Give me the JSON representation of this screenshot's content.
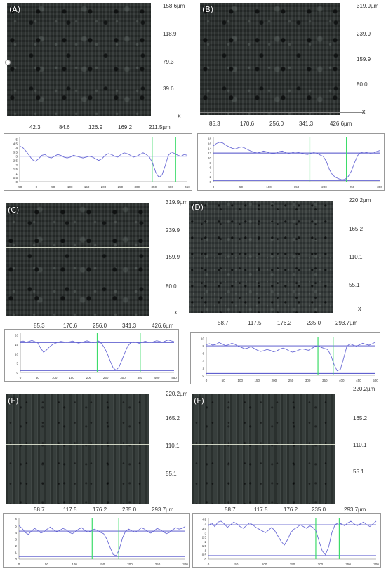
{
  "colors": {
    "profile_line": "#6b6bd6",
    "reference_line": "#4a4ac8",
    "cursor_line": "#3ddc6a",
    "axis_text": "#333333"
  },
  "panels": [
    {
      "id": "A",
      "label": "(A)",
      "texture": "coarse",
      "y_ticks": [
        "158.6µm",
        "118.9",
        "79.3",
        "39.6"
      ],
      "x_ticks": [
        "42.3",
        "84.6",
        "126.9",
        "169.2",
        "211.5µm"
      ],
      "axis_letter": "x",
      "profile": {
        "x_ticks": [
          "-50",
          "0",
          "50",
          "100",
          "150",
          "200",
          "250",
          "300",
          "350",
          "400",
          "450"
        ],
        "y_ticks": [
          "5",
          "4.5",
          "4",
          "3.5",
          "3",
          "2.5",
          "2",
          "1.5",
          "1",
          "0.5",
          "0"
        ],
        "ref_high": 3.0,
        "ref_low": 0.2,
        "ymax": 5.2,
        "cursors": [
          0.79,
          0.93
        ],
        "values": [
          4.2,
          4.0,
          3.6,
          3.1,
          2.6,
          2.4,
          2.7,
          3.1,
          3.2,
          2.9,
          2.8,
          3.0,
          3.2,
          3.1,
          2.9,
          2.8,
          2.9,
          3.1,
          3.0,
          2.9,
          2.8,
          2.9,
          3.0,
          2.9,
          2.7,
          2.5,
          2.7,
          3.1,
          3.3,
          3.2,
          3.0,
          2.9,
          3.2,
          3.4,
          3.3,
          3.1,
          2.9,
          3.0,
          3.2,
          3.4,
          3.2,
          2.9,
          2.2,
          1.1,
          0.5,
          0.8,
          1.9,
          3.1,
          3.5,
          3.3,
          3.1,
          3.0,
          3.2,
          3.1
        ]
      }
    },
    {
      "id": "B",
      "label": "(B)",
      "texture": "coarse",
      "y_ticks": [
        "319.9µm",
        "239.9",
        "159.9",
        "80.0"
      ],
      "x_ticks": [
        "85.3",
        "170.6",
        "256.0",
        "341.3",
        "426.6µm"
      ],
      "axis_letter": "x",
      "profile": {
        "x_ticks": [
          "0",
          "50",
          "100",
          "150",
          "200",
          "250",
          "300"
        ],
        "y_ticks": [
          "18",
          "16",
          "14",
          "12",
          "10",
          "8",
          "6",
          "4",
          "2",
          "0"
        ],
        "ref_high": 12.0,
        "ref_low": 0.5,
        "ymax": 18.5,
        "cursors": [
          0.58,
          0.8
        ],
        "values": [
          15.0,
          16.0,
          16.5,
          16.2,
          15.3,
          14.6,
          14.0,
          13.7,
          14.2,
          14.6,
          14.1,
          13.4,
          12.8,
          12.3,
          12.0,
          12.4,
          12.8,
          12.5,
          12.0,
          11.7,
          12.0,
          12.6,
          12.8,
          12.2,
          11.8,
          12.1,
          12.5,
          12.3,
          11.9,
          11.6,
          11.4,
          11.8,
          12.2,
          11.9,
          11.2,
          10.6,
          8.5,
          5.0,
          2.8,
          1.8,
          1.2,
          0.8,
          1.0,
          2.2,
          4.5,
          8.0,
          11.0,
          12.2,
          12.5,
          12.2,
          11.9,
          12.0,
          12.6,
          13.0
        ]
      }
    },
    {
      "id": "C",
      "label": "(C)",
      "texture": "coarse",
      "y_ticks": [
        "319.9µm",
        "239.9",
        "159.9",
        "80.0"
      ],
      "x_ticks": [
        "85.3",
        "170.6",
        "256.0",
        "341.3",
        "426.6µm"
      ],
      "axis_letter": "x",
      "profile": {
        "x_ticks": [
          "0",
          "50",
          "100",
          "150",
          "200",
          "250",
          "300",
          "350",
          "400",
          "450"
        ],
        "y_ticks": [
          "20",
          "15",
          "10",
          "5",
          "0"
        ],
        "ref_high": 16.0,
        "ref_low": 1.0,
        "ymax": 21.0,
        "cursors": [
          0.5,
          0.78
        ],
        "values": [
          16.5,
          16.8,
          16.2,
          16.6,
          17.1,
          16.5,
          15.8,
          13.0,
          10.8,
          12.0,
          13.6,
          14.8,
          15.6,
          16.2,
          16.6,
          16.3,
          16.0,
          16.4,
          16.8,
          16.2,
          15.7,
          16.0,
          16.5,
          16.9,
          16.4,
          15.9,
          16.2,
          16.8,
          15.4,
          13.2,
          10.0,
          6.0,
          2.5,
          1.2,
          2.8,
          6.5,
          10.5,
          14.0,
          15.8,
          16.4,
          16.0,
          15.6,
          16.1,
          16.7,
          16.3,
          16.0,
          16.5,
          17.0,
          16.6,
          16.2,
          16.8,
          17.4,
          16.9,
          16.5
        ]
      }
    },
    {
      "id": "D",
      "label": "(D)",
      "texture": "fine",
      "y_ticks": [
        "220.2µm",
        "165.2",
        "110.1",
        "55.1"
      ],
      "x_ticks": [
        "58.7",
        "117.5",
        "176.2",
        "235.0",
        "293.7µm"
      ],
      "axis_letter": "x",
      "profile": {
        "x_ticks": [
          "0",
          "50",
          "100",
          "150",
          "200",
          "250",
          "300",
          "350",
          "400",
          "450",
          "500"
        ],
        "y_ticks": [
          "10",
          "8",
          "6",
          "4",
          "2",
          "0"
        ],
        "ref_high": 8.0,
        "ref_low": 0.5,
        "ymax": 10.5,
        "cursors": [
          0.66,
          0.75
        ],
        "values": [
          8.3,
          8.6,
          8.2,
          8.4,
          8.9,
          8.5,
          8.1,
          8.3,
          8.7,
          8.4,
          7.9,
          7.6,
          7.2,
          7.4,
          7.8,
          7.3,
          6.8,
          6.5,
          6.7,
          7.0,
          6.8,
          6.4,
          6.6,
          7.1,
          7.4,
          7.1,
          6.6,
          6.3,
          6.5,
          6.9,
          7.2,
          7.0,
          6.8,
          7.3,
          7.8,
          8.0,
          7.6,
          7.3,
          7.0,
          5.5,
          3.0,
          1.2,
          1.6,
          4.5,
          7.8,
          8.6,
          8.2,
          7.9,
          8.3,
          8.7,
          8.4,
          8.2,
          8.6,
          9.0
        ]
      }
    },
    {
      "id": "E",
      "label": "(E)",
      "texture": "striped",
      "y_ticks": [
        "220.2µm",
        "165.2",
        "110.1",
        "55.1"
      ],
      "x_ticks": [
        "58.7",
        "117.5",
        "176.2",
        "235.0",
        "293.7µm"
      ],
      "axis_letter": "",
      "profile": {
        "x_ticks": [
          "0",
          "50",
          "100",
          "150",
          "200",
          "250",
          "300"
        ],
        "y_ticks": [
          "6",
          "5",
          "4",
          "3",
          "2",
          "1",
          "0"
        ],
        "ref_high": 4.2,
        "ref_low": 0.4,
        "ymax": 6.2,
        "cursors": [
          0.44,
          0.6
        ],
        "values": [
          5.0,
          4.6,
          4.0,
          3.7,
          4.2,
          4.6,
          4.3,
          3.9,
          4.1,
          4.5,
          4.8,
          4.4,
          4.1,
          4.3,
          4.6,
          4.4,
          4.0,
          3.8,
          4.1,
          4.5,
          4.7,
          4.3,
          4.0,
          4.2,
          4.5,
          4.3,
          4.0,
          3.8,
          3.0,
          1.8,
          0.7,
          0.5,
          1.5,
          3.2,
          4.2,
          4.5,
          4.2,
          4.0,
          4.3,
          4.7,
          4.5,
          4.1,
          3.9,
          4.2,
          4.6,
          4.4,
          4.1,
          3.8,
          4.0,
          4.4,
          4.7,
          4.5,
          4.6,
          4.9
        ]
      }
    },
    {
      "id": "F",
      "label": "(F)",
      "texture": "striped",
      "y_ticks": [
        "220.2µm",
        "165.2",
        "110.1",
        "55.1"
      ],
      "x_ticks": [
        "58.7",
        "117.5",
        "176.2",
        "235.0",
        "293.7µm"
      ],
      "axis_letter": "",
      "profile": {
        "x_ticks": [
          "0",
          "50",
          "100",
          "150",
          "200",
          "250",
          "300"
        ],
        "y_ticks": [
          "4.5",
          "4",
          "3.5",
          "3",
          "2.5",
          "2",
          "1.5",
          "1",
          "0.5",
          "0"
        ],
        "ref_high": 3.9,
        "ref_low": 0.4,
        "ymax": 4.7,
        "cursors": [
          0.64,
          0.78
        ],
        "values": [
          3.8,
          4.1,
          3.7,
          4.2,
          4.3,
          4.0,
          3.6,
          3.9,
          4.2,
          4.0,
          3.7,
          3.5,
          3.8,
          4.1,
          3.9,
          3.6,
          3.4,
          3.2,
          3.0,
          3.3,
          3.6,
          3.2,
          2.6,
          2.0,
          1.6,
          2.2,
          3.0,
          3.4,
          3.6,
          3.9,
          3.7,
          3.5,
          3.8,
          3.6,
          3.2,
          2.0,
          0.9,
          0.5,
          1.4,
          3.0,
          3.9,
          4.1,
          4.0,
          3.8,
          4.1,
          4.3,
          4.0,
          3.8,
          4.0,
          4.2,
          3.9,
          3.7,
          4.0,
          4.3
        ]
      }
    }
  ]
}
